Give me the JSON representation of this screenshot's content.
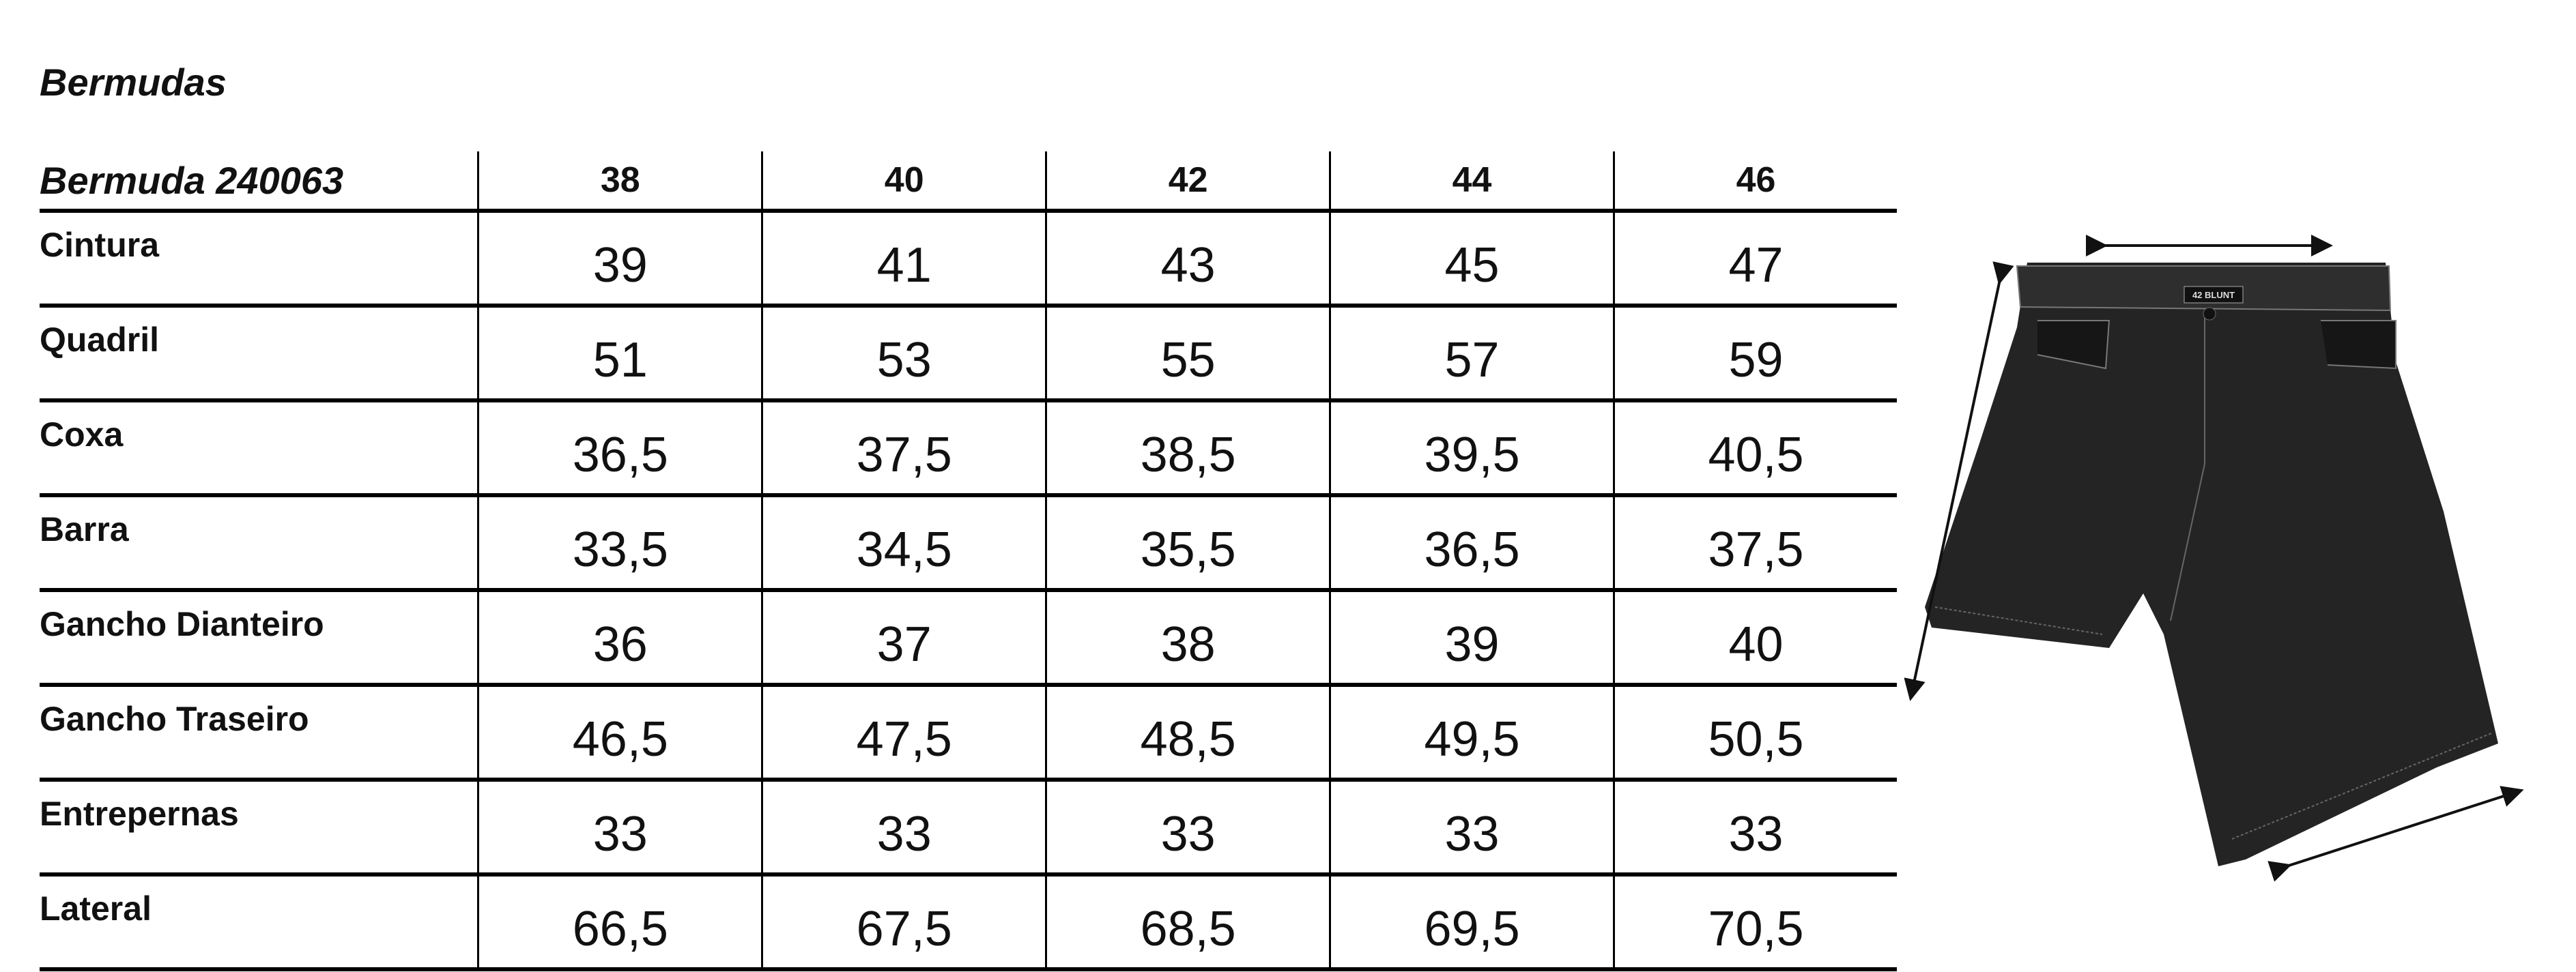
{
  "title": "Bermudas",
  "table": {
    "model": "Bermuda 240063",
    "sizes": [
      "38",
      "40",
      "42",
      "44",
      "46"
    ],
    "rows": [
      {
        "label": "Cintura",
        "values": [
          "39",
          "41",
          "43",
          "45",
          "47"
        ]
      },
      {
        "label": "Quadril",
        "values": [
          "51",
          "53",
          "55",
          "57",
          "59"
        ]
      },
      {
        "label": "Coxa",
        "values": [
          "36,5",
          "37,5",
          "38,5",
          "39,5",
          "40,5"
        ]
      },
      {
        "label": "Barra",
        "values": [
          "33,5",
          "34,5",
          "35,5",
          "36,5",
          "37,5"
        ]
      },
      {
        "label": "Gancho Dianteiro",
        "values": [
          "36",
          "37",
          "38",
          "39",
          "40"
        ]
      },
      {
        "label": "Gancho Traseiro",
        "values": [
          "46,5",
          "47,5",
          "48,5",
          "49,5",
          "50,5"
        ]
      },
      {
        "label": "Entrepernas",
        "values": [
          "33",
          "33",
          "33",
          "33",
          "33"
        ]
      },
      {
        "label": "Lateral",
        "values": [
          "66,5",
          "67,5",
          "68,5",
          "69,5",
          "70,5"
        ]
      }
    ]
  },
  "image": {
    "subject": "black denim shorts with measurement arrows",
    "garment_label": "42 BLUNT",
    "colors": {
      "denim": "#232323",
      "stitch": "#8a8a8a",
      "arrow": "#111111"
    }
  }
}
